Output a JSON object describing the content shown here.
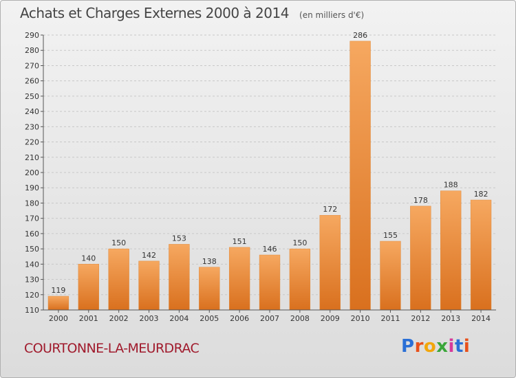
{
  "header": {
    "title": "Achats et Charges Externes 2000 à 2014",
    "subtitle": "(en milliers d'€)"
  },
  "footer": {
    "commune": "COURTONNE-LA-MEURDRAC",
    "brand": "Proxiti",
    "brand_colors": [
      "#2a6fd6",
      "#e8501a",
      "#f2a60c",
      "#3aa63a",
      "#d63a9a",
      "#2a6fd6",
      "#e8501a"
    ]
  },
  "colors": {
    "bar_light": "#f6a860",
    "bar_dark": "#d9701e",
    "grid": "#c8c8c8",
    "axis": "#555555"
  },
  "chart_data": {
    "type": "bar",
    "categories": [
      "2000",
      "2001",
      "2002",
      "2003",
      "2004",
      "2005",
      "2006",
      "2007",
      "2008",
      "2009",
      "2010",
      "2011",
      "2012",
      "2013",
      "2014"
    ],
    "values": [
      119,
      140,
      150,
      142,
      153,
      138,
      151,
      146,
      150,
      172,
      286,
      155,
      178,
      188,
      182
    ],
    "title": "Achats et Charges Externes 2000 à 2014",
    "xlabel": "",
    "ylabel": "",
    "ylim": [
      110,
      290
    ],
    "yticks": [
      110,
      120,
      130,
      140,
      150,
      160,
      170,
      180,
      190,
      200,
      210,
      220,
      230,
      240,
      250,
      260,
      270,
      280,
      290
    ],
    "grid": true,
    "data_labels": true
  }
}
